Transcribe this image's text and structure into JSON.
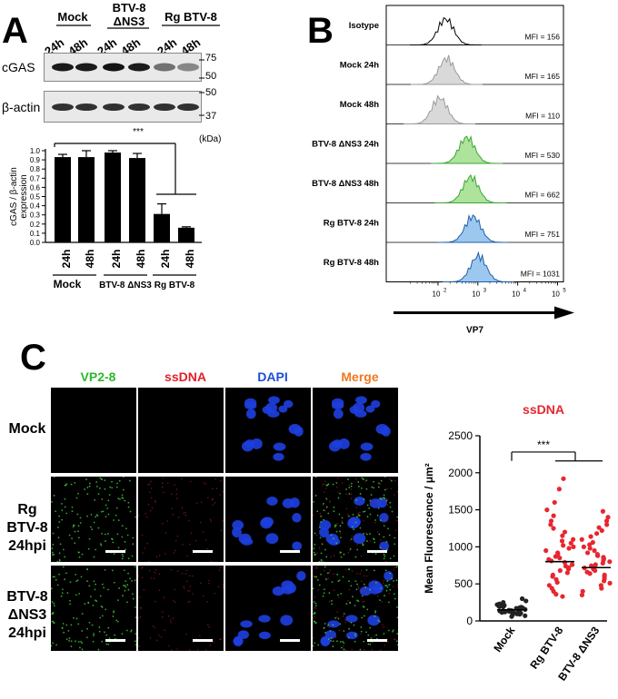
{
  "panel_letters": [
    "A",
    "B",
    "C"
  ],
  "panelA": {
    "groups": [
      "Mock",
      "BTV-8\nΔNS3",
      "Rg BTV-8"
    ],
    "times": [
      "24h",
      "48h",
      "24h",
      "48h",
      "24h",
      "48h"
    ],
    "blot_rows": [
      "cGAS",
      "β-actin"
    ],
    "mw_markers_cgas": [
      "75",
      "50"
    ],
    "mw_markers_actin": [
      "50",
      "37"
    ],
    "kda_label": "(kDa)",
    "significance": "***",
    "bottom_groups": [
      "Mock",
      "BTV-8 ΔNS3",
      "Rg BTV-8"
    ]
  },
  "panelB": {
    "histograms": [
      {
        "label": "Isotype",
        "mfi": "MFI = 156",
        "color": "#ffffff",
        "stroke": "#000000",
        "peak": 156
      },
      {
        "label": "Mock 24h",
        "mfi": "MFI = 165",
        "color": "#d9d9d9",
        "stroke": "#9a9a9a",
        "peak": 165
      },
      {
        "label": "Mock 48h",
        "mfi": "MFI = 110",
        "color": "#d9d9d9",
        "stroke": "#9a9a9a",
        "peak": 110
      },
      {
        "label": "BTV-8 ΔNS3 24h",
        "mfi": "MFI = 530",
        "color": "#aee39b",
        "stroke": "#3aa637",
        "peak": 530
      },
      {
        "label": "BTV-8 ΔNS3 48h",
        "mfi": "MFI = 662",
        "color": "#aee39b",
        "stroke": "#3aa637",
        "peak": 662
      },
      {
        "label": "Rg BTV-8 24h",
        "mfi": "MFI = 751",
        "color": "#9cc8f0",
        "stroke": "#1f5fa8",
        "peak": 751
      },
      {
        "label": "Rg BTV-8 48h",
        "mfi": "MFI = 1031",
        "color": "#9cc8f0",
        "stroke": "#1f5fa8",
        "peak": 1031
      }
    ],
    "x_ticks": [
      "10",
      "10",
      "10",
      "10",
      "10"
    ],
    "x_tick_exponents": [
      "2",
      "3",
      "4",
      "5"
    ],
    "x_axis_label": "VP7"
  },
  "panelC": {
    "columns": [
      "VP2-8",
      "ssDNA",
      "DAPI",
      "Merge"
    ],
    "column_colors": [
      "#2eb82e",
      "#e0202a",
      "#1a4fd6",
      "#f07820"
    ],
    "rows": [
      "Mock",
      "Rg\nBTV-8\n24hpi",
      "BTV-8\nΔNS3\n24hpi"
    ]
  },
  "chart_data": [
    {
      "type": "bar",
      "categories": [
        "24h",
        "48h",
        "24h",
        "48h",
        "24h",
        "48h"
      ],
      "groups": [
        "Mock",
        "Mock",
        "BTV-8 ΔNS3",
        "BTV-8 ΔNS3",
        "Rg BTV-8",
        "Rg BTV-8"
      ],
      "values": [
        0.93,
        0.93,
        0.98,
        0.92,
        0.31,
        0.16
      ],
      "errors": [
        0.03,
        0.07,
        0.02,
        0.05,
        0.11,
        0.01
      ],
      "ylabel": "cGAS / β-actin\nexpression",
      "yticks": [
        "0.0",
        "0.1",
        "0.2",
        "0.3",
        "0.4",
        "0.5",
        "0.6",
        "0.7",
        "0.8",
        "0.9",
        "1.0"
      ],
      "ylim": [
        0,
        1.0
      ],
      "significance": "***"
    },
    {
      "type": "scatter",
      "title": "ssDNA",
      "categories": [
        "Mock",
        "Rg BTV-8",
        "BTV-8 ΔNS3"
      ],
      "means": [
        150,
        800,
        720
      ],
      "ylabel": "Mean Fluorescence / μm²",
      "yticks": [
        "0",
        "500",
        "1000",
        "1500",
        "2000",
        "2500"
      ],
      "ylim": [
        0,
        2500
      ],
      "significance": "***",
      "colors": [
        "#222222",
        "#e8262f",
        "#e8262f"
      ],
      "points": [
        [
          60,
          70,
          80,
          90,
          95,
          100,
          105,
          110,
          115,
          120,
          125,
          130,
          135,
          140,
          145,
          150,
          155,
          160,
          165,
          170,
          175,
          180,
          185,
          190,
          195,
          200,
          210,
          220,
          230,
          250,
          270,
          300
        ],
        [
          330,
          360,
          400,
          440,
          480,
          520,
          560,
          600,
          620,
          650,
          680,
          700,
          720,
          740,
          760,
          790,
          810,
          830,
          850,
          870,
          900,
          920,
          950,
          980,
          1000,
          1020,
          1050,
          1080,
          1100,
          1150,
          1200,
          1250,
          1300,
          1350,
          1420,
          1500,
          1600,
          1780,
          1920
        ],
        [
          350,
          400,
          440,
          480,
          510,
          540,
          570,
          600,
          620,
          640,
          660,
          680,
          700,
          715,
          730,
          745,
          760,
          780,
          800,
          820,
          840,
          860,
          880,
          900,
          920,
          950,
          980,
          1000,
          1030,
          1060,
          1100,
          1140,
          1180,
          1220,
          1260,
          1300,
          1350,
          1400,
          1480
        ]
      ]
    }
  ]
}
